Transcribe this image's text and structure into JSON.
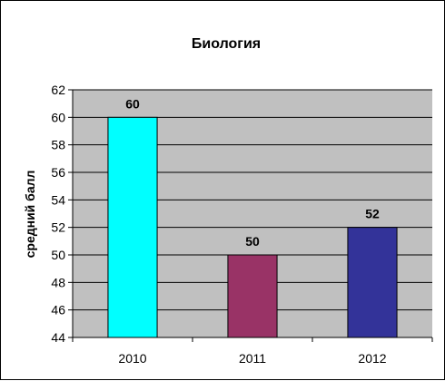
{
  "chart_data": {
    "type": "bar",
    "title": "Биология",
    "xlabel": "",
    "ylabel": "средний балл",
    "categories": [
      "2010",
      "2011",
      "2012"
    ],
    "values": [
      60,
      50,
      52
    ],
    "data_labels": [
      "60",
      "50",
      "52"
    ],
    "bar_colors": [
      "#00FFFF",
      "#993366",
      "#333399"
    ],
    "plot_area_color": "#C0C0C0",
    "ylim": [
      44,
      62
    ],
    "ytick_step": 2,
    "yticks": [
      "44",
      "46",
      "48",
      "50",
      "52",
      "54",
      "56",
      "58",
      "60",
      "62"
    ],
    "grid": true,
    "legend": "none"
  }
}
